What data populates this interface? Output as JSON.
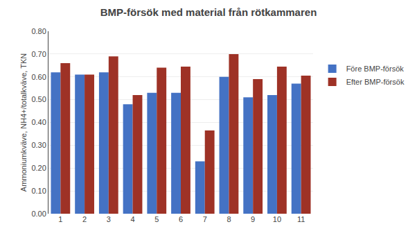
{
  "chart_data": {
    "type": "bar",
    "title": "BMP-försök med material från rötkammaren",
    "ylabel": "Ammoniumkväve, NH4+/totalkväve, TKN",
    "categories": [
      1,
      2,
      3,
      4,
      5,
      6,
      7,
      8,
      9,
      10,
      11
    ],
    "series": [
      {
        "name": "Före BMP-försök",
        "color": "#4472C4",
        "values": [
          0.62,
          0.61,
          0.62,
          0.48,
          0.53,
          0.53,
          0.23,
          0.6,
          0.51,
          0.52,
          0.57
        ]
      },
      {
        "name": "Efter BMP-försök",
        "color": "#9E3226",
        "values": [
          0.66,
          0.61,
          0.69,
          0.52,
          0.64,
          0.645,
          0.365,
          0.7,
          0.59,
          0.645,
          0.605
        ]
      }
    ],
    "ylim": [
      0.0,
      0.8
    ],
    "yticks": [
      {
        "value": 0.0,
        "label": "0.00"
      },
      {
        "value": 0.1,
        "label": "0.10"
      },
      {
        "value": 0.2,
        "label": "0.20"
      },
      {
        "value": 0.3,
        "label": "0.30"
      },
      {
        "value": 0.4,
        "label": "0.40"
      },
      {
        "value": 0.5,
        "label": "0.50"
      },
      {
        "value": 0.6,
        "label": "0.60"
      },
      {
        "value": 0.7,
        "label": "0.70"
      },
      {
        "value": 0.8,
        "label": "0.80"
      }
    ],
    "grid": true,
    "legend": "right"
  }
}
